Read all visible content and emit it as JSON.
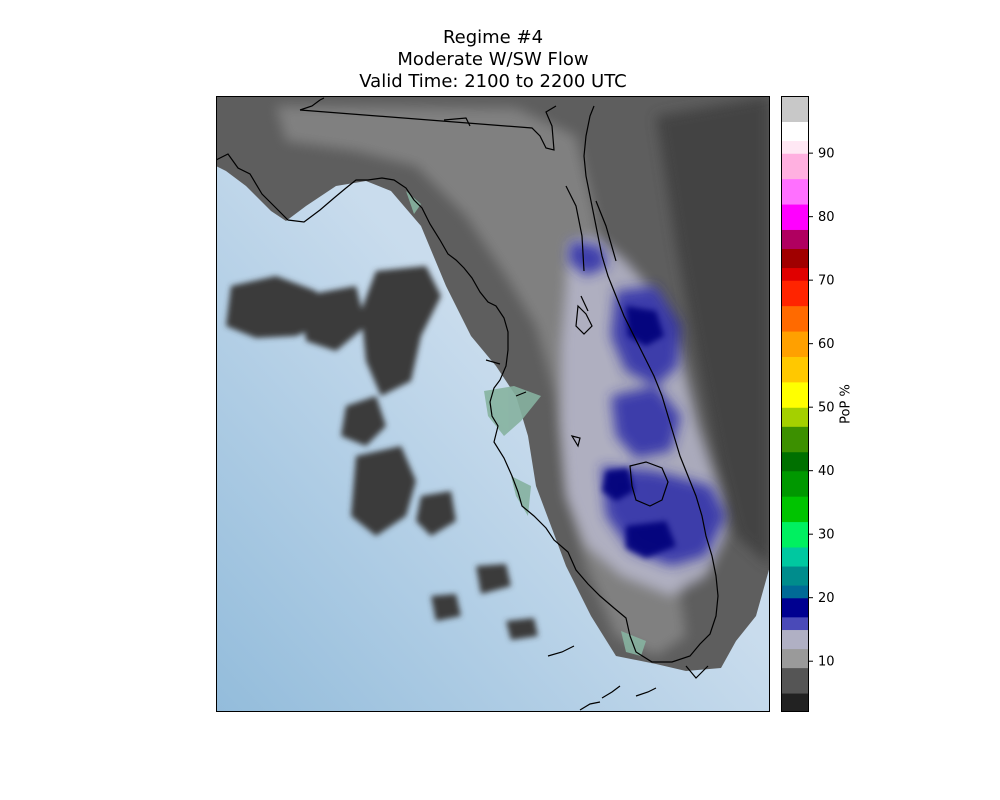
{
  "figure": {
    "title_line1": "Regime #4",
    "title_line2": "Moderate W/SW Flow",
    "title_line3": "Valid Time: 2100 to 2200 UTC"
  },
  "map": {
    "region": "Florida peninsula",
    "field": "Probability of precipitation",
    "colors": {
      "ocean_light": "#c9dced",
      "ocean_dark": "#93bcdb",
      "shallow_water": "#86b2a0",
      "coastline": "#000000"
    }
  },
  "colorbar": {
    "label": "PoP %",
    "ticks": [
      "10",
      "20",
      "30",
      "40",
      "50",
      "60",
      "70",
      "80",
      "90"
    ],
    "range": [
      2,
      99
    ],
    "stops": [
      {
        "v": 2,
        "c": "#222222"
      },
      {
        "v": 5,
        "c": "#555555"
      },
      {
        "v": 9,
        "c": "#9a9a9a"
      },
      {
        "v": 12,
        "c": "#b0b0c4"
      },
      {
        "v": 15,
        "c": "#4a4ab8"
      },
      {
        "v": 17,
        "c": "#000090"
      },
      {
        "v": 20,
        "c": "#006a96"
      },
      {
        "v": 22,
        "c": "#008c8c"
      },
      {
        "v": 25,
        "c": "#00c8a0"
      },
      {
        "v": 28,
        "c": "#00f060"
      },
      {
        "v": 32,
        "c": "#00c400"
      },
      {
        "v": 36,
        "c": "#009800"
      },
      {
        "v": 40,
        "c": "#007000"
      },
      {
        "v": 43,
        "c": "#3c9000"
      },
      {
        "v": 47,
        "c": "#a4d000"
      },
      {
        "v": 50,
        "c": "#ffff00"
      },
      {
        "v": 54,
        "c": "#ffc800"
      },
      {
        "v": 58,
        "c": "#ffa000"
      },
      {
        "v": 62,
        "c": "#ff6a00"
      },
      {
        "v": 66,
        "c": "#ff2400"
      },
      {
        "v": 70,
        "c": "#e00000"
      },
      {
        "v": 72,
        "c": "#a00000"
      },
      {
        "v": 75,
        "c": "#b00060"
      },
      {
        "v": 78,
        "c": "#ff00ff"
      },
      {
        "v": 82,
        "c": "#ff70ff"
      },
      {
        "v": 86,
        "c": "#ffb0e0"
      },
      {
        "v": 90,
        "c": "#ffe8f4"
      },
      {
        "v": 92,
        "c": "#ffffff"
      },
      {
        "v": 95,
        "c": "#c8c8c8"
      },
      {
        "v": 99,
        "c": "#6a7a8a"
      }
    ]
  }
}
